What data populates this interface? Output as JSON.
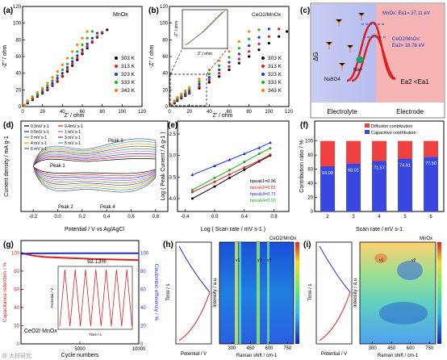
{
  "figure": {
    "panels": {
      "a": {
        "letter": "(a)",
        "material": "MnOx",
        "xlabel": "Z' / ohm",
        "ylabel": "-Z'' / ohm",
        "xticks": [
          "0",
          "20",
          "40",
          "60",
          "80",
          "100",
          "120"
        ],
        "yticks": [
          "0",
          "20",
          "40",
          "60",
          "80",
          "100",
          "120"
        ],
        "legend": [
          "303 K",
          "313 K",
          "323 K",
          "333 K",
          "343 K"
        ]
      },
      "b": {
        "letter": "(b)",
        "material": "CeO2/MnOx",
        "xlabel": "Z' / ohm",
        "ylabel": "-Z'' / ohm",
        "xticks": [
          "0",
          "20",
          "40",
          "60",
          "80",
          "100",
          "120"
        ],
        "yticks": [
          "0",
          "20",
          "40",
          "60",
          "80",
          "100",
          "120"
        ],
        "legend": [
          "303 K",
          "313 K",
          "323 K",
          "333 K",
          "343 K"
        ],
        "inset_xlabel": "Z' / ohm",
        "inset_ylabel": "-Z'' / ohm"
      },
      "c": {
        "letter": "(c)",
        "ylabel": "ΔG",
        "ea1": "MnOx: Ea1= 27.11 eV",
        "ea2_line1": "CeO2/MnOx:",
        "ea2_line2": "Ea2= 18.76 eV",
        "compare": "Ea2 <Ea1",
        "ion": "Na+",
        "salt": "NaSO4",
        "left_label": "Electrolyte",
        "right_label": "Electrode"
      },
      "d": {
        "letter": "(d)",
        "xlabel": "Potential / V vs Ag/AgCl",
        "ylabel": "Current density / mA g-1",
        "xticks": [
          "-0.2",
          "0.0",
          "0.2",
          "0.4",
          "0.6",
          "0.8"
        ],
        "legend": [
          "0.3mV s-1",
          "0.4mV s-1",
          "0.5mV s-1",
          "1 mV s-1",
          "2 mV s-1",
          "3 mV s-1",
          "4 mV s-1",
          "5 mV s-1",
          "6 mV s-1"
        ],
        "peaks": [
          "Peak 1",
          "Peak 2",
          "Peak 3",
          "Peak 4"
        ]
      },
      "e": {
        "letter": "(e)",
        "xlabel": "Log ( Scan rate / mV s-1 )",
        "ylabel": "Log ( Peak Current / A g-1 )",
        "xticks": [
          "-0.4",
          "0.0",
          "0.4",
          "0.8"
        ],
        "yticks": [
          "-4.0",
          "-3.5",
          "-3.0",
          "-2.5"
        ],
        "labels": [
          "bpeak1=0.96",
          "bpeak2=0.81",
          "bpeak3=0.71",
          "bpeak4=0.93"
        ]
      },
      "f": {
        "letter": "(f)",
        "xlabel": "Scan rate / mV s-1",
        "ylabel": "Contribution ratio / %",
        "yticks": [
          "0",
          "20",
          "40",
          "60",
          "80",
          "100"
        ],
        "legend": [
          "Diffusion contribution",
          "Capacitive contribution"
        ]
      },
      "g": {
        "letter": "(g)",
        "xlabel": "Cycle numbers",
        "ylabel_left": "Capacitance retention / %",
        "ylabel_right": "Coulombic efficiency / %",
        "xticks": [
          "5000",
          "10000"
        ],
        "yticks": [
          "0",
          "20",
          "40",
          "60",
          "80",
          "100"
        ],
        "retention": "92.13%",
        "material": "CeO2/ MnOx",
        "inset_xlabel": "Time / s",
        "inset_ylabel": "Potential / V"
      },
      "h": {
        "letter": "(h)",
        "material": "CeO2/MnOx",
        "xlabel_left": "Potential / V",
        "xlabel_right": "Raman shift / cm-1",
        "ylabel_mid": "Intensity / a.u.",
        "ylabel_left": "Time / s",
        "xticks": [
          "300",
          "450",
          "600",
          "750"
        ],
        "peaks": [
          "v1",
          "v2",
          "v3"
        ]
      },
      "i": {
        "letter": "(i)",
        "material": "MnOx",
        "xlabel_left": "Potential / V",
        "xlabel_right": "Raman shift / cm-1",
        "ylabel_mid": "Intensity / a.u.",
        "ylabel_left": "Time / s",
        "xticks": [
          "300",
          "450",
          "600",
          "750"
        ],
        "peaks": [
          "v1",
          "v2"
        ]
      }
    },
    "watermark": "@ 大材研究"
  },
  "chart_data": [
    {
      "type": "scatter",
      "panel": "a",
      "xlim": [
        0,
        120
      ],
      "ylim": [
        0,
        120
      ],
      "series": [
        {
          "name": "303 K",
          "color": "#000000",
          "x": [
            2,
            5,
            10,
            15,
            20,
            25,
            30,
            35,
            40,
            45,
            50,
            55,
            60,
            65,
            70,
            75,
            80,
            85
          ],
          "y": [
            1,
            4,
            8,
            12,
            16,
            20,
            25,
            30,
            36,
            42,
            49,
            56,
            63,
            70,
            77,
            83,
            88,
            92
          ]
        },
        {
          "name": "313 K",
          "color": "#e02020",
          "x": [
            2,
            5,
            10,
            15,
            20,
            25,
            30,
            35,
            40,
            45,
            50,
            55,
            60,
            65,
            70,
            75,
            80
          ],
          "y": [
            1,
            5,
            9,
            13,
            17,
            21,
            26,
            31,
            37,
            44,
            51,
            58,
            65,
            72,
            78,
            84,
            89
          ]
        },
        {
          "name": "323 K",
          "color": "#2030e0",
          "x": [
            2,
            5,
            10,
            15,
            20,
            25,
            30,
            35,
            40,
            45,
            50,
            55,
            60,
            65,
            70,
            75
          ],
          "y": [
            1,
            5,
            10,
            14,
            18,
            23,
            28,
            34,
            40,
            47,
            54,
            61,
            68,
            75,
            82,
            88
          ]
        },
        {
          "name": "333 K",
          "color": "#20b020",
          "x": [
            2,
            5,
            10,
            15,
            20,
            25,
            30,
            35,
            40,
            45,
            50,
            55,
            60,
            65,
            70
          ],
          "y": [
            1,
            6,
            11,
            15,
            20,
            25,
            31,
            37,
            44,
            51,
            58,
            66,
            74,
            82,
            90
          ]
        },
        {
          "name": "343 K",
          "color": "#ff8000",
          "x": [
            2,
            5,
            10,
            15,
            20,
            25,
            30,
            35,
            40,
            45,
            50,
            55,
            60,
            65
          ],
          "y": [
            2,
            7,
            12,
            17,
            22,
            28,
            35,
            42,
            50,
            58,
            66,
            74,
            82,
            90
          ]
        }
      ]
    },
    {
      "type": "scatter",
      "panel": "b",
      "xlim": [
        0,
        120
      ],
      "ylim": [
        0,
        120
      ],
      "series": [
        {
          "name": "303 K",
          "color": "#000000",
          "x": [
            2,
            5,
            8,
            12,
            16,
            20,
            30,
            40,
            50,
            60,
            70,
            80,
            90,
            100,
            110,
            118
          ],
          "y": [
            1,
            4,
            7,
            10,
            13,
            16,
            22,
            29,
            36,
            44,
            52,
            60,
            68,
            76,
            84,
            90
          ]
        },
        {
          "name": "313 K",
          "color": "#e02020",
          "x": [
            2,
            5,
            8,
            12,
            16,
            20,
            30,
            40,
            50,
            60,
            70,
            80,
            90,
            100,
            110
          ],
          "y": [
            1,
            5,
            8,
            11,
            14,
            17,
            24,
            32,
            40,
            48,
            57,
            66,
            75,
            84,
            93
          ]
        },
        {
          "name": "323 K",
          "color": "#2030e0",
          "x": [
            2,
            5,
            8,
            12,
            16,
            20,
            30,
            40,
            50,
            60,
            70,
            80,
            90,
            100
          ],
          "y": [
            1,
            5,
            9,
            12,
            15,
            19,
            27,
            35,
            44,
            53,
            63,
            73,
            83,
            93
          ]
        },
        {
          "name": "333 K",
          "color": "#20b020",
          "x": [
            2,
            5,
            8,
            12,
            16,
            20,
            30,
            40,
            50,
            60,
            70,
            80,
            90
          ],
          "y": [
            2,
            6,
            10,
            13,
            17,
            21,
            30,
            39,
            49,
            59,
            70,
            81,
            92
          ]
        },
        {
          "name": "343 K",
          "color": "#ff8000",
          "x": [
            2,
            5,
            8,
            12,
            16,
            20,
            30,
            40,
            50,
            60,
            70,
            80
          ],
          "y": [
            2,
            7,
            11,
            15,
            19,
            23,
            33,
            44,
            55,
            66,
            78,
            90
          ]
        }
      ]
    },
    {
      "type": "line",
      "panel": "e",
      "xlim": [
        -0.5,
        1.0
      ],
      "ylim": [
        -4.3,
        -2.2
      ],
      "series": [
        {
          "name": "bpeak1=0.96",
          "color": "#000000",
          "x": [
            -0.3,
            0.0,
            0.2,
            0.4,
            0.6,
            0.75
          ],
          "y": [
            -4.0,
            -3.72,
            -3.52,
            -3.33,
            -3.14,
            -3.0
          ]
        },
        {
          "name": "bpeak2=0.81",
          "color": "#e02020",
          "x": [
            -0.3,
            0.0,
            0.2,
            0.4,
            0.6,
            0.75
          ],
          "y": [
            -3.85,
            -3.61,
            -3.44,
            -3.28,
            -3.12,
            -2.98
          ]
        },
        {
          "name": "bpeak3=0.71",
          "color": "#2030e0",
          "x": [
            -0.3,
            0.0,
            0.2,
            0.4,
            0.6,
            0.75
          ],
          "y": [
            -3.45,
            -3.24,
            -3.1,
            -2.96,
            -2.82,
            -2.7
          ]
        },
        {
          "name": "bpeak4=0.93",
          "color": "#20b020",
          "x": [
            -0.3,
            0.0,
            0.2,
            0.4,
            0.6,
            0.75
          ],
          "y": [
            -3.8,
            -3.52,
            -3.34,
            -3.15,
            -2.96,
            -2.83
          ]
        }
      ]
    },
    {
      "type": "bar",
      "panel": "f",
      "categories": [
        "2",
        "3",
        "4",
        "5",
        "6"
      ],
      "series": [
        {
          "name": "Capacitive contribution",
          "color": "#3a46e0",
          "values": [
            64.08,
            68.01,
            71.57,
            74.91,
            77.6
          ]
        },
        {
          "name": "Diffusion contribution",
          "color": "#f04040",
          "values": [
            35.92,
            31.99,
            28.43,
            25.09,
            22.4
          ]
        }
      ],
      "ylim": [
        0,
        100
      ]
    },
    {
      "type": "line",
      "panel": "g",
      "xlim": [
        0,
        10000
      ],
      "ylim": [
        0,
        100
      ],
      "series": [
        {
          "name": "Capacitance retention",
          "color": "#e02020",
          "x": [
            0,
            1000,
            2000,
            4000,
            6000,
            8000,
            10000
          ],
          "y": [
            100,
            97,
            95.5,
            94.5,
            93.5,
            92.8,
            92.13
          ]
        },
        {
          "name": "Coulombic efficiency",
          "color": "#2030e0",
          "x": [
            0,
            1000,
            2000,
            4000,
            6000,
            8000,
            10000
          ],
          "y": [
            99,
            99.5,
            99.5,
            99.6,
            99.6,
            99.7,
            99.7
          ]
        }
      ]
    }
  ]
}
